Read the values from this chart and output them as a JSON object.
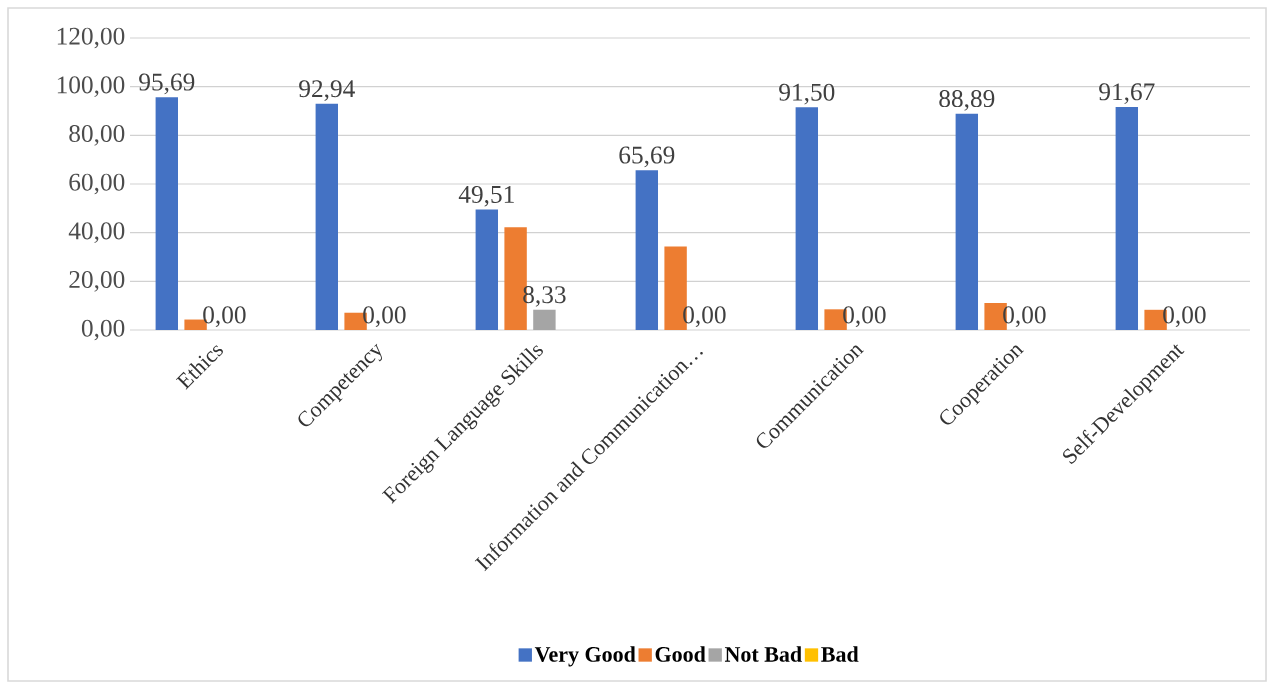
{
  "chart_data": {
    "type": "bar",
    "categories": [
      "Ethics",
      "Competency",
      "Foreign Language Skills",
      "Information and Communication…",
      "Communication",
      "Cooperation",
      "Self-Development"
    ],
    "series": [
      {
        "name": "Very Good",
        "color": "#4472c4",
        "values": [
          95.69,
          92.94,
          49.51,
          65.69,
          91.5,
          88.89,
          91.67
        ],
        "value_labels": [
          "95,69",
          "92,94",
          "49,51",
          "65,69",
          "91,50",
          "88,89",
          "91,67"
        ]
      },
      {
        "name": "Good",
        "color": "#ed7d31",
        "values": [
          4.3,
          7.1,
          42.2,
          34.3,
          8.5,
          11.1,
          8.3
        ]
      },
      {
        "name": "Not Bad",
        "color": "#a5a5a5",
        "values": [
          0,
          0,
          8.33,
          0,
          0,
          0,
          0
        ],
        "value_labels": [
          "0,00",
          "0,00",
          "8,33",
          "0,00",
          "0,00",
          "0,00",
          "0,00"
        ]
      },
      {
        "name": "Bad",
        "color": "#ffc000",
        "values": [
          0,
          0,
          0,
          0,
          0,
          0,
          0
        ]
      }
    ],
    "ylim": [
      0,
      120
    ],
    "yticks": [
      {
        "value": 0,
        "label": "0,00"
      },
      {
        "value": 20,
        "label": "20,00"
      },
      {
        "value": 40,
        "label": "40,00"
      },
      {
        "value": 60,
        "label": "60,00"
      },
      {
        "value": 80,
        "label": "80,00"
      },
      {
        "value": 100,
        "label": "100,00"
      },
      {
        "value": 120,
        "label": "120,00"
      }
    ],
    "grid": "y",
    "legend": "bottom"
  }
}
